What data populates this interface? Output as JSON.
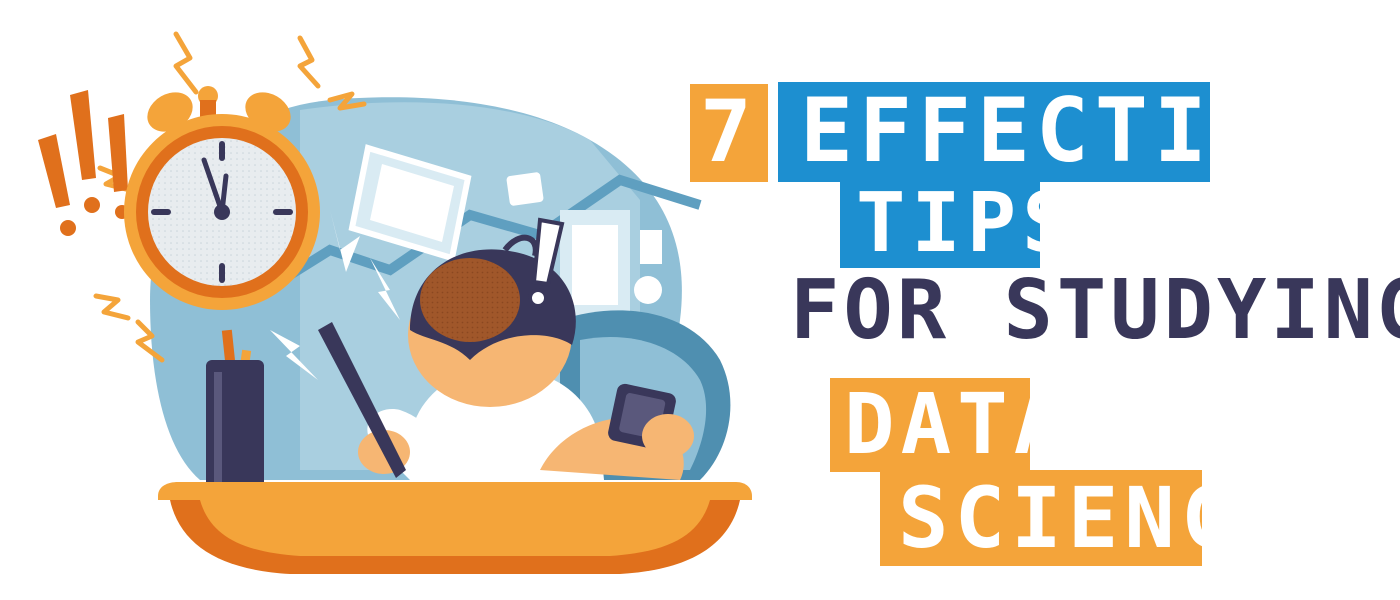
{
  "title": {
    "number": "7",
    "line1": "EFFECTIVE",
    "line2": "TIPS",
    "line3": "FOR STUDYING",
    "line4": "DATA",
    "line5": "SCIENCE"
  },
  "colors": {
    "orange": "#f4a43a",
    "dark_orange": "#e0701c",
    "blue": "#1d8fd0",
    "light_blue": "#8fbfd6",
    "steel_blue": "#4f8fb0",
    "navy": "#39375a",
    "skin": "#f6b673"
  },
  "illustration": {
    "clock_hour": 12,
    "clock_minute": 59
  }
}
